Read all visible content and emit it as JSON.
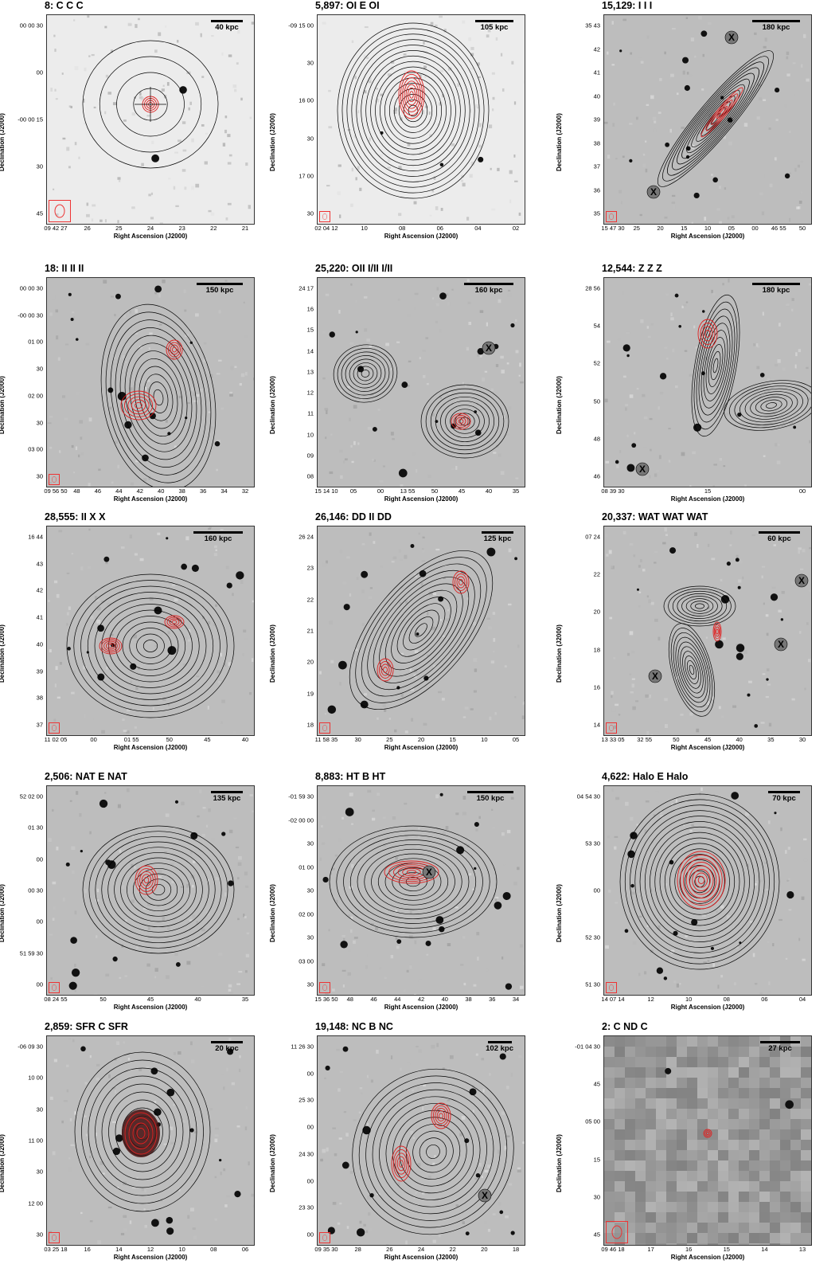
{
  "common": {
    "xlabel": "Right Ascension (J2000)",
    "ylabel": "Declination (J2000)"
  },
  "panels": [
    {
      "title": "8: C C C",
      "scale": "40 kpc",
      "yticks": [
        "00 00 30",
        "00",
        "-00 00 15",
        "30",
        "45"
      ],
      "xticks": [
        "09 42 27",
        "26",
        "25",
        "24",
        "23",
        "22",
        "21"
      ],
      "beam": "large",
      "kind": "compact"
    },
    {
      "title": "5,897: OI E OI",
      "scale": "105 kpc",
      "yticks": [
        "-09 15 00",
        "30",
        "16 00",
        "30",
        "17 00",
        "30"
      ],
      "xticks": [
        "02 04 12",
        "10",
        "08",
        "06",
        "04",
        "02"
      ],
      "beam": "small",
      "kind": "halo"
    },
    {
      "title": "15,129: I I I",
      "scale": "180 kpc",
      "yticks": [
        "35 43",
        "42",
        "41",
        "40",
        "39",
        "38",
        "37",
        "36",
        "35"
      ],
      "xticks": [
        "15 47 30",
        "25",
        "20",
        "15",
        "10",
        "05",
        "00",
        "46 55",
        "50"
      ],
      "beam": "small",
      "kind": "diag"
    },
    {
      "title": "18: II II II",
      "scale": "150 kpc",
      "yticks": [
        "00 00 30",
        "-00 00 30",
        "01 00",
        "30",
        "02 00",
        "30",
        "03 00",
        "30"
      ],
      "xticks": [
        "09 56 50",
        "48",
        "46",
        "44",
        "42",
        "40",
        "38",
        "36",
        "34",
        "32"
      ],
      "beam": "small",
      "kind": "double"
    },
    {
      "title": "25,220: OII I/II I/II",
      "scale": "160 kpc",
      "yticks": [
        "24 17",
        "16",
        "15",
        "14",
        "13",
        "12",
        "11",
        "10",
        "09",
        "08"
      ],
      "xticks": [
        "15 14 10",
        "05",
        "00",
        "13 55",
        "50",
        "45",
        "40",
        "35"
      ],
      "beam": "none",
      "kind": "double2"
    },
    {
      "title": "12,544: Z Z Z",
      "scale": "180 kpc",
      "yticks": [
        "28 56",
        "54",
        "52",
        "50",
        "48",
        "46"
      ],
      "xticks": [
        "08 39 30",
        "15",
        "00"
      ],
      "beam": "none",
      "kind": "zshape"
    },
    {
      "title": "28,555: II X X",
      "scale": "160 kpc",
      "yticks": [
        "16 44",
        "43",
        "42",
        "41",
        "40",
        "39",
        "38",
        "37"
      ],
      "xticks": [
        "11 02 05",
        "00",
        "01 55",
        "50",
        "45",
        "40"
      ],
      "beam": "small",
      "kind": "xshape"
    },
    {
      "title": "26,146: DD II DD",
      "scale": "125 kpc",
      "yticks": [
        "26 24",
        "23",
        "22",
        "21",
        "20",
        "19",
        "18"
      ],
      "xticks": [
        "11 58 35",
        "30",
        "25",
        "20",
        "15",
        "10",
        "05"
      ],
      "beam": "small",
      "kind": "diag2"
    },
    {
      "title": "20,337: WAT WAT WAT",
      "scale": "60 kpc",
      "yticks": [
        "07 24",
        "22",
        "20",
        "18",
        "16",
        "14"
      ],
      "xticks": [
        "13 33 05",
        "32 55",
        "50",
        "45",
        "40",
        "35",
        "30"
      ],
      "beam": "small",
      "kind": "wat"
    },
    {
      "title": "2,506: NAT E NAT",
      "scale": "135 kpc",
      "yticks": [
        "52 02 00",
        "01 30",
        "00",
        "00 30",
        "00",
        "51 59 30",
        "00"
      ],
      "xticks": [
        "08 24 55",
        "50",
        "45",
        "40",
        "35"
      ],
      "beam": "small",
      "kind": "halo2"
    },
    {
      "title": "8,883: HT B HT",
      "scale": "150 kpc",
      "yticks": [
        "-01 59 30",
        "-02 00 00",
        "30",
        "01 00",
        "30",
        "02 00",
        "30",
        "03 00",
        "30"
      ],
      "xticks": [
        "15 36 50",
        "48",
        "46",
        "44",
        "42",
        "40",
        "38",
        "36",
        "34"
      ],
      "beam": "small",
      "kind": "ht"
    },
    {
      "title": "4,622: Halo E Halo",
      "scale": "70 kpc",
      "yticks": [
        "04 54 30",
        "53 30",
        "00",
        "52 30",
        "51 30"
      ],
      "xticks": [
        "14 07 14",
        "12",
        "10",
        "08",
        "06",
        "04"
      ],
      "beam": "small",
      "kind": "halo3"
    },
    {
      "title": "2,859: SFR C SFR",
      "scale": "20 kpc",
      "yticks": [
        "-06 09 30",
        "10 00",
        "30",
        "11 00",
        "30",
        "12 00",
        "30"
      ],
      "xticks": [
        "03 25 18",
        "16",
        "14",
        "12",
        "10",
        "08",
        "06"
      ],
      "beam": "small",
      "kind": "sfr"
    },
    {
      "title": "19,148: NC B NC",
      "scale": "102 kpc",
      "yticks": [
        "11 26 30",
        "00",
        "25 30",
        "00",
        "24 30",
        "00",
        "23 30",
        "00"
      ],
      "xticks": [
        "09 35 30",
        "28",
        "26",
        "24",
        "22",
        "20",
        "18"
      ],
      "beam": "small",
      "kind": "nc"
    },
    {
      "title": "2: C ND C",
      "scale": "27 kpc",
      "yticks": [
        "-01 04 30",
        "45",
        "05 00",
        "15",
        "30",
        "45"
      ],
      "xticks": [
        "09 46 18",
        "17",
        "16",
        "15",
        "14",
        "13"
      ],
      "beam": "large",
      "kind": "pixel"
    }
  ]
}
